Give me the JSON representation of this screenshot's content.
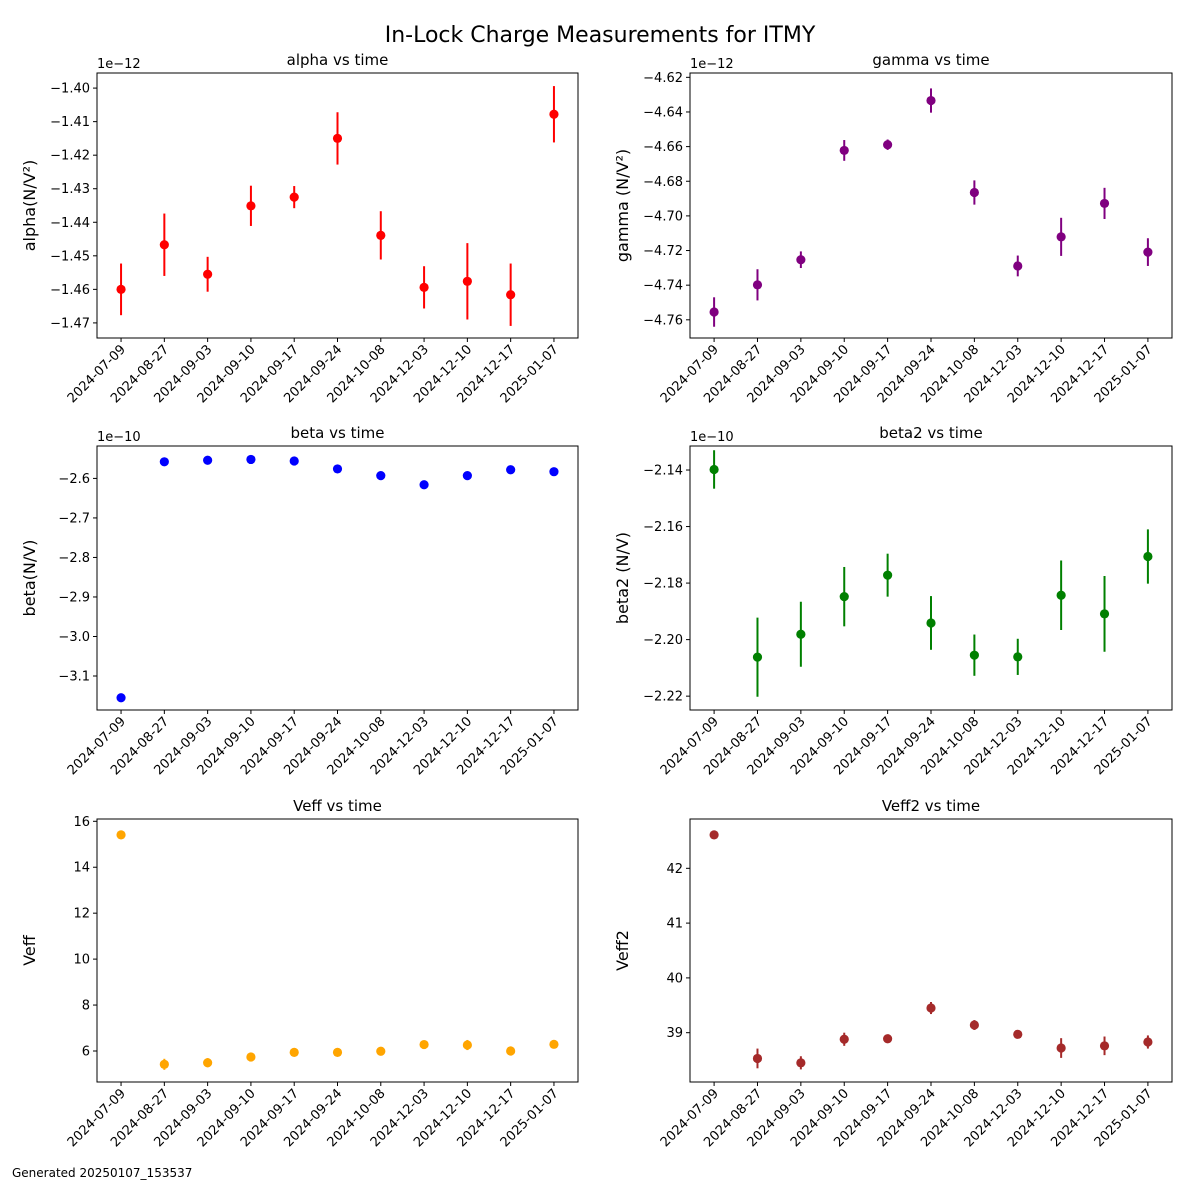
{
  "figure": {
    "title": "In-Lock Charge Measurements for ITMY",
    "footer": "Generated 20250107_153537"
  },
  "chart_data": [
    {
      "id": "alpha",
      "type": "scatter",
      "title": "alpha vs time",
      "ylabel": "alpha(N/V²)",
      "offset_label": "1e−12",
      "color": "#ff0000",
      "categories": [
        "2024-07-09",
        "2024-08-27",
        "2024-09-03",
        "2024-09-10",
        "2024-09-17",
        "2024-09-24",
        "2024-10-08",
        "2024-12-03",
        "2024-12-10",
        "2024-12-17",
        "2025-01-07"
      ],
      "values": [
        -1.46,
        -1.4467,
        -1.4555,
        -1.4351,
        -1.4325,
        -1.415,
        -1.4439,
        -1.4594,
        -1.4576,
        -1.4616,
        -1.4078
      ],
      "errors": [
        0.0077,
        0.0093,
        0.0052,
        0.006,
        0.0033,
        0.0078,
        0.0072,
        0.0063,
        0.0114,
        0.0093,
        0.0084
      ],
      "ylim": [
        -1.4745,
        -1.3955
      ],
      "yticks": [
        -1.47,
        -1.46,
        -1.45,
        -1.44,
        -1.43,
        -1.42,
        -1.41,
        -1.4
      ],
      "ytick_labels": [
        "−1.47",
        "−1.46",
        "−1.45",
        "−1.44",
        "−1.43",
        "−1.42",
        "−1.41",
        "−1.40"
      ]
    },
    {
      "id": "gamma",
      "type": "scatter",
      "title": "gamma vs time",
      "ylabel": "gamma (N/V²)",
      "offset_label": "1e−12",
      "color": "#800080",
      "categories": [
        "2024-07-09",
        "2024-08-27",
        "2024-09-03",
        "2024-09-10",
        "2024-09-17",
        "2024-09-24",
        "2024-10-08",
        "2024-12-03",
        "2024-12-10",
        "2024-12-17",
        "2025-01-07"
      ],
      "values": [
        -4.7555,
        -4.7398,
        -4.7253,
        -4.6622,
        -4.6589,
        -4.6334,
        -4.6865,
        -4.7289,
        -4.7121,
        -4.6928,
        -4.7209
      ],
      "errors": [
        0.0085,
        0.009,
        0.0048,
        0.006,
        0.003,
        0.007,
        0.007,
        0.006,
        0.011,
        0.009,
        0.008
      ],
      "ylim": [
        -4.7705,
        -4.6175
      ],
      "yticks": [
        -4.76,
        -4.74,
        -4.72,
        -4.7,
        -4.68,
        -4.66,
        -4.64,
        -4.62
      ],
      "ytick_labels": [
        "−4.76",
        "−4.74",
        "−4.72",
        "−4.70",
        "−4.68",
        "−4.66",
        "−4.64",
        "−4.62"
      ]
    },
    {
      "id": "beta",
      "type": "scatter",
      "title": "beta vs time",
      "ylabel": "beta(N/V)",
      "offset_label": "1e−10",
      "color": "#0000ff",
      "categories": [
        "2024-07-09",
        "2024-08-27",
        "2024-09-03",
        "2024-09-10",
        "2024-09-17",
        "2024-09-24",
        "2024-10-08",
        "2024-12-03",
        "2024-12-10",
        "2024-12-17",
        "2025-01-07"
      ],
      "values": [
        -3.155,
        -2.558,
        -2.554,
        -2.552,
        -2.556,
        -2.576,
        -2.593,
        -2.616,
        -2.593,
        -2.578,
        -2.583
      ],
      "errors": [
        0.004,
        0.008,
        0.006,
        0.004,
        0.004,
        0.004,
        0.005,
        0.004,
        0.007,
        0.009,
        0.006
      ],
      "ylim": [
        -3.186,
        -2.518
      ],
      "yticks": [
        -3.1,
        -3.0,
        -2.9,
        -2.8,
        -2.7,
        -2.6
      ],
      "ytick_labels": [
        "−3.1",
        "−3.0",
        "−2.9",
        "−2.8",
        "−2.7",
        "−2.6"
      ]
    },
    {
      "id": "beta2",
      "type": "scatter",
      "title": "beta2 vs time",
      "ylabel": "beta2 (N/V)",
      "offset_label": "1e−10",
      "color": "#008000",
      "categories": [
        "2024-07-09",
        "2024-08-27",
        "2024-09-03",
        "2024-09-10",
        "2024-09-17",
        "2024-09-24",
        "2024-10-08",
        "2024-12-03",
        "2024-12-10",
        "2024-12-17",
        "2025-01-07"
      ],
      "values": [
        -2.1398,
        -2.2062,
        -2.1981,
        -2.1848,
        -2.1772,
        -2.1941,
        -2.2055,
        -2.2061,
        -2.1843,
        -2.1909,
        -2.1706
      ],
      "errors": [
        0.0068,
        0.014,
        0.0115,
        0.0105,
        0.0076,
        0.0095,
        0.0073,
        0.0064,
        0.0123,
        0.0134,
        0.0096
      ],
      "ylim": [
        -2.2249,
        -2.1315
      ],
      "yticks": [
        -2.22,
        -2.2,
        -2.18,
        -2.16,
        -2.14
      ],
      "ytick_labels": [
        "−2.22",
        "−2.20",
        "−2.18",
        "−2.16",
        "−2.14"
      ]
    },
    {
      "id": "veff",
      "type": "scatter",
      "title": "Veff vs time",
      "ylabel": "Veff",
      "offset_label": "",
      "color": "#ffa500",
      "categories": [
        "2024-07-09",
        "2024-08-27",
        "2024-09-03",
        "2024-09-10",
        "2024-09-17",
        "2024-09-24",
        "2024-10-08",
        "2024-12-03",
        "2024-12-10",
        "2024-12-17",
        "2025-01-07"
      ],
      "values": [
        15.41,
        5.42,
        5.49,
        5.74,
        5.94,
        5.94,
        5.99,
        6.28,
        6.26,
        6.0,
        6.29
      ],
      "errors": [
        0.05,
        0.24,
        0.2,
        0.18,
        0.12,
        0.15,
        0.11,
        0.11,
        0.22,
        0.2,
        0.12
      ],
      "ylim": [
        4.65,
        16.1
      ],
      "yticks": [
        6,
        8,
        10,
        12,
        14,
        16
      ],
      "ytick_labels": [
        "6",
        "8",
        "10",
        "12",
        "14",
        "16"
      ]
    },
    {
      "id": "veff2",
      "type": "scatter",
      "title": "Veff2 vs time",
      "ylabel": "Veff2",
      "offset_label": "",
      "color": "#a52a2a",
      "categories": [
        "2024-07-09",
        "2024-08-27",
        "2024-09-03",
        "2024-09-10",
        "2024-09-17",
        "2024-09-24",
        "2024-10-08",
        "2024-12-03",
        "2024-12-10",
        "2024-12-17",
        "2025-01-07"
      ],
      "values": [
        42.61,
        38.53,
        38.45,
        38.88,
        38.89,
        39.45,
        39.14,
        38.97,
        38.72,
        38.76,
        38.83
      ],
      "errors": [
        0.06,
        0.18,
        0.12,
        0.12,
        0.07,
        0.11,
        0.09,
        0.05,
        0.18,
        0.17,
        0.12
      ],
      "ylim": [
        38.1,
        42.9
      ],
      "yticks": [
        39,
        40,
        41,
        42
      ],
      "ytick_labels": [
        "39",
        "40",
        "41",
        "42"
      ]
    }
  ]
}
